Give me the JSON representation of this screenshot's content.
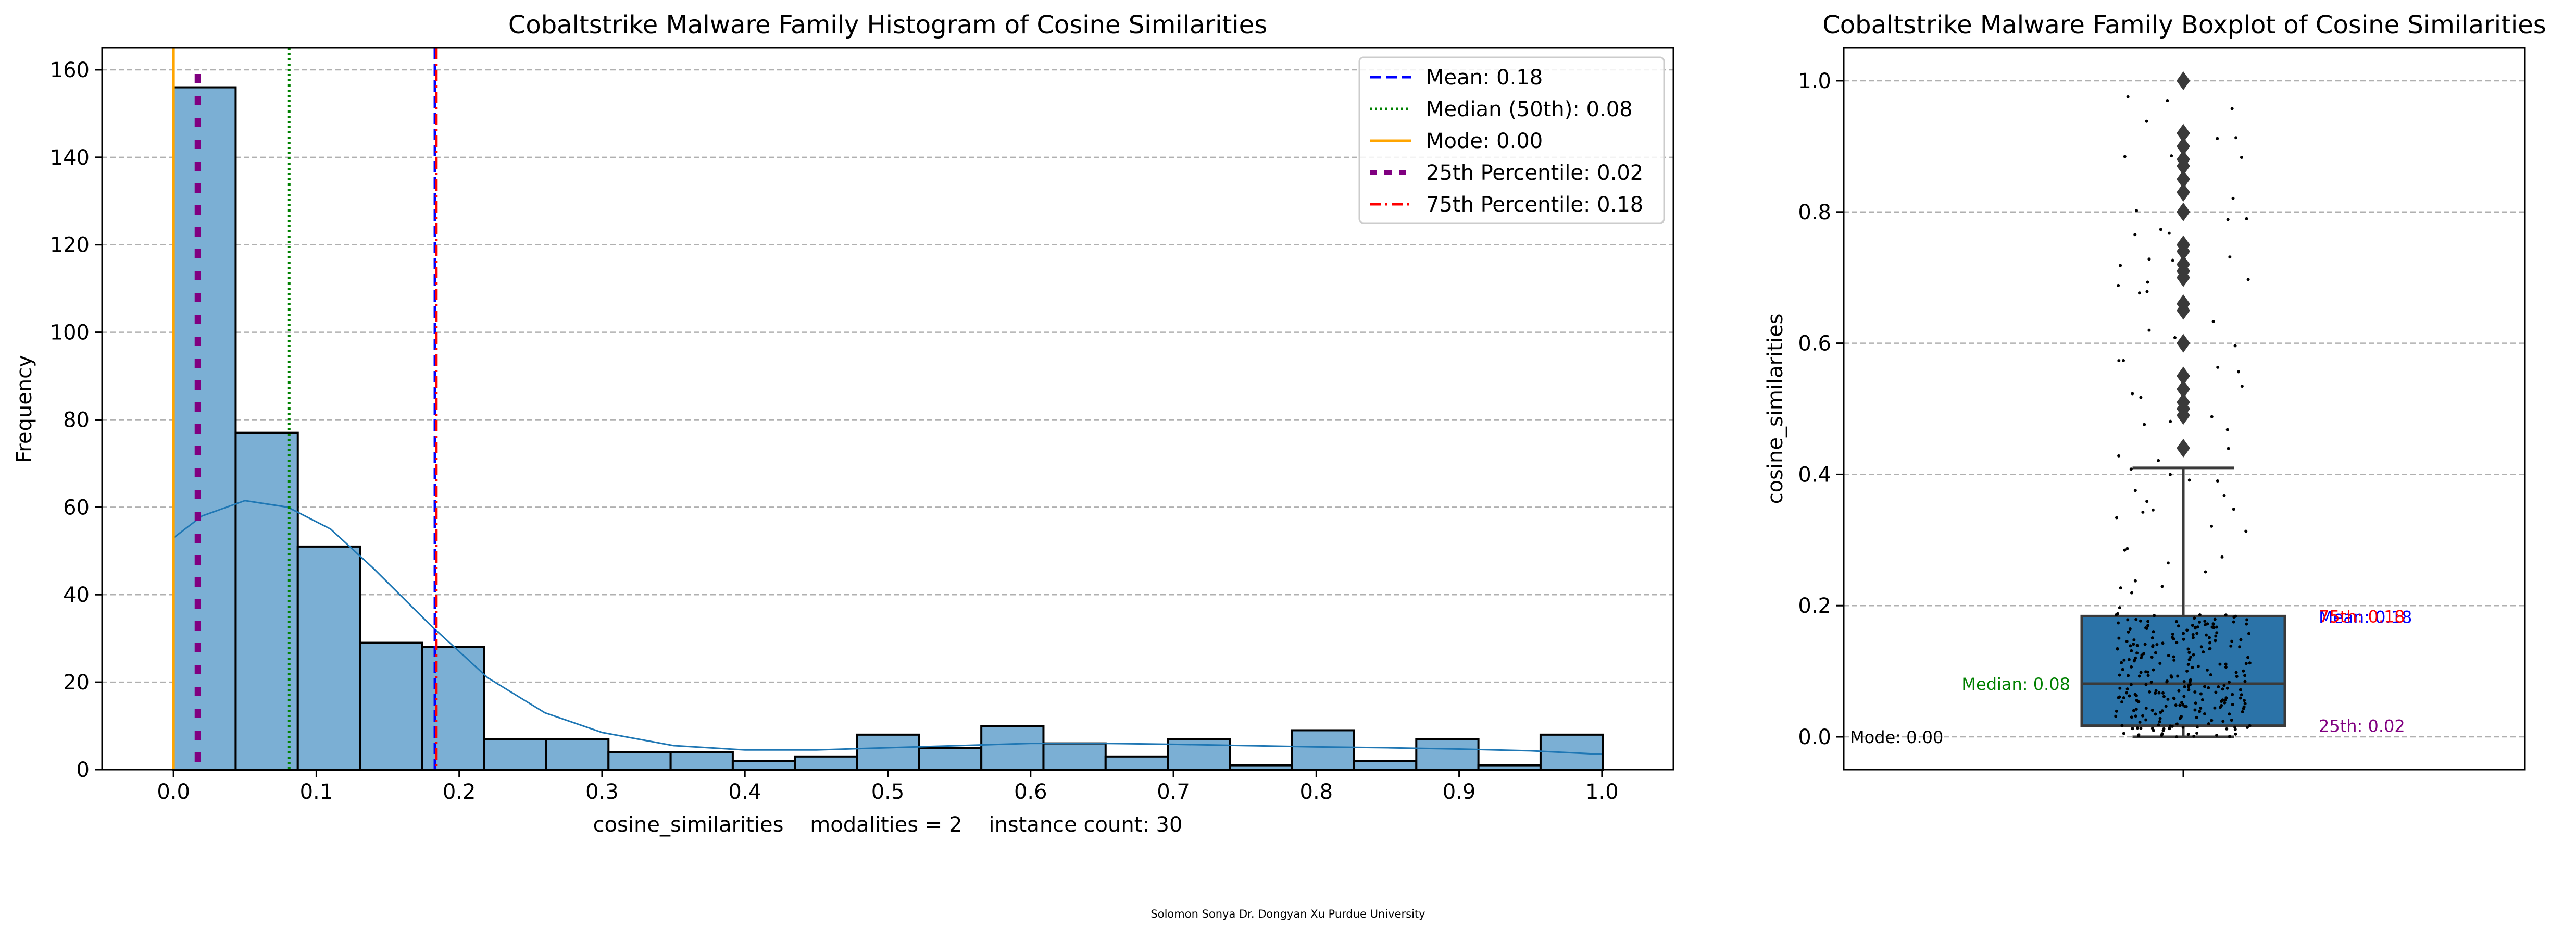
{
  "footer": "Solomon Sonya    Dr. Dongyan Xu    Purdue University",
  "chart_data": [
    {
      "type": "bar",
      "title": "Cobaltstrike Malware Family Histogram of Cosine Similarities",
      "xlabel": "cosine_similarities    modalities = 2    instance count: 30",
      "ylabel": "Frequency",
      "xlim": [
        -0.05,
        1.05
      ],
      "ylim": [
        0,
        165
      ],
      "xticks": [
        0.0,
        0.1,
        0.2,
        0.3,
        0.4,
        0.5,
        0.6,
        0.7,
        0.8,
        0.9,
        1.0
      ],
      "xtick_labels": [
        "0.0",
        "0.1",
        "0.2",
        "0.3",
        "0.4",
        "0.5",
        "0.6",
        "0.7",
        "0.8",
        "0.9",
        "1.0"
      ],
      "yticks": [
        0,
        20,
        40,
        60,
        80,
        100,
        120,
        140,
        160
      ],
      "ytick_labels": [
        "0",
        "20",
        "40",
        "60",
        "80",
        "100",
        "120",
        "140",
        "160"
      ],
      "grid": "y",
      "bar_color": "#7bafd4",
      "bins": {
        "start": 0.0,
        "width": 0.0435,
        "counts": [
          156,
          77,
          51,
          29,
          28,
          7,
          7,
          4,
          4,
          2,
          3,
          8,
          5,
          10,
          6,
          3,
          7,
          1,
          9,
          2,
          7,
          1,
          8
        ]
      },
      "kde": {
        "color": "#1f77b4",
        "x": [
          0.0,
          0.02,
          0.05,
          0.08,
          0.11,
          0.14,
          0.18,
          0.22,
          0.26,
          0.3,
          0.35,
          0.4,
          0.45,
          0.5,
          0.55,
          0.6,
          0.65,
          0.7,
          0.75,
          0.8,
          0.85,
          0.9,
          0.95,
          1.0
        ],
        "y": [
          53,
          58,
          61.5,
          60,
          55,
          46,
          33,
          21,
          13,
          8.5,
          5.5,
          4.5,
          4.5,
          5,
          5.5,
          6,
          6,
          5.8,
          5.5,
          5.2,
          5,
          4.7,
          4.3,
          3.5
        ]
      },
      "vlines": [
        {
          "label": "Mean: 0.18",
          "x": 0.183,
          "color": "#0000ff",
          "style": "dashed"
        },
        {
          "label": "Median (50th): 0.08",
          "x": 0.081,
          "color": "#008000",
          "style": "dotted"
        },
        {
          "label": "Mode: 0.00",
          "x": 0.0,
          "color": "#ffa500",
          "style": "solid"
        },
        {
          "label": "25th Percentile: 0.02",
          "x": 0.017,
          "color": "#800080",
          "style": "thick-dashed"
        },
        {
          "label": "75th Percentile: 0.18",
          "x": 0.184,
          "color": "#ff0000",
          "style": "dashdot"
        }
      ],
      "legend": "top-right"
    },
    {
      "type": "box",
      "title": "Cobaltstrike Malware Family Boxplot of Cosine Similarities",
      "xlabel": "",
      "ylabel": "cosine_similarities",
      "ylim": [
        -0.05,
        1.05
      ],
      "yticks": [
        0.0,
        0.2,
        0.4,
        0.6,
        0.8,
        1.0
      ],
      "ytick_labels": [
        "0.0",
        "0.2",
        "0.4",
        "0.6",
        "0.8",
        "1.0"
      ],
      "grid": "y",
      "box_color": "#2b73a8",
      "box": {
        "q1": 0.017,
        "median": 0.081,
        "q3": 0.184,
        "whisker_low": 0.0,
        "whisker_high": 0.41
      },
      "outliers": [
        0.44,
        0.49,
        0.5,
        0.51,
        0.53,
        0.55,
        0.6,
        0.65,
        0.66,
        0.7,
        0.71,
        0.72,
        0.74,
        0.75,
        0.8,
        0.83,
        0.85,
        0.87,
        0.88,
        0.9,
        0.92,
        1.0
      ],
      "annotations": [
        {
          "text": "Mean: 0.18",
          "y": 0.183,
          "color": "#0000ff",
          "side": "right"
        },
        {
          "text": "75th: 0.18",
          "y": 0.184,
          "color": "#ff0000",
          "side": "right"
        },
        {
          "text": "Median: 0.08",
          "y": 0.081,
          "color": "#008000",
          "side": "left"
        },
        {
          "text": "25th: 0.02",
          "y": 0.017,
          "color": "#800080",
          "side": "right"
        },
        {
          "text": "Mode: 0.00",
          "y": 0.0,
          "color": "#000000",
          "side": "far-left"
        }
      ]
    }
  ]
}
